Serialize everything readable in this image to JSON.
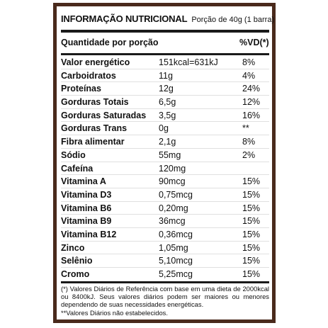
{
  "header": {
    "title": "INFORMAÇÃO NUTRICIONAL",
    "portion": "Porção de 40g (1 barra)"
  },
  "columns": {
    "quantity": "Quantidade por porção",
    "vd": "%VD(*)"
  },
  "rows": [
    {
      "name": "Valor energético",
      "amount": "151kcal=631kJ",
      "vd": "8%"
    },
    {
      "name": "Carboidratos",
      "amount": "11g",
      "vd": "4%"
    },
    {
      "name": "Proteínas",
      "amount": "12g",
      "vd": "24%"
    },
    {
      "name": "Gorduras Totais",
      "amount": "6,5g",
      "vd": "12%"
    },
    {
      "name": "Gorduras Saturadas",
      "amount": "3,5g",
      "vd": "16%"
    },
    {
      "name": "Gorduras Trans",
      "amount": "0g",
      "vd": "**"
    },
    {
      "name": "Fibra alimentar",
      "amount": "2,1g",
      "vd": "8%"
    },
    {
      "name": "Sódio",
      "amount": "55mg",
      "vd": "2%"
    },
    {
      "name": "Cafeína",
      "amount": "120mg",
      "vd": ""
    },
    {
      "name": "Vitamina A",
      "amount": "90mcg",
      "vd": "15%"
    },
    {
      "name": "Vitamina D3",
      "amount": "0,75mcg",
      "vd": "15%"
    },
    {
      "name": "Vitamina B6",
      "amount": "0,20mg",
      "vd": "15%"
    },
    {
      "name": "Vitamina B9",
      "amount": "36mcg",
      "vd": "15%"
    },
    {
      "name": "Vitamina B12",
      "amount": "0,36mcg",
      "vd": "15%"
    },
    {
      "name": "Zinco",
      "amount": "1,05mg",
      "vd": "15%"
    },
    {
      "name": "Selênio",
      "amount": "5,10mcg",
      "vd": "15%"
    },
    {
      "name": "Cromo",
      "amount": "5,25mcg",
      "vd": "15%"
    }
  ],
  "footnotes": {
    "note1": "(*) Valores Diários de Referência com base em uma dieta de 2000kcal ou 8400kJ. Seus valores diários podem ser maiores ou menores dependendo de suas necessidades energéticas.",
    "note2": "**Valores Diários não estabelecidos."
  },
  "colors": {
    "border": "#4a2a1c",
    "text": "#111111"
  }
}
